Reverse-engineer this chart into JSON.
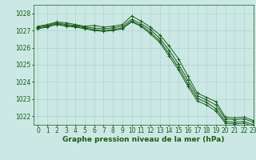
{
  "title": "Graphe pression niveau de la mer (hPa)",
  "bg_color": "#cce8e4",
  "grid_color": "#aad4ce",
  "line_color": "#1a5c1a",
  "xlim": [
    -0.5,
    23
  ],
  "ylim": [
    1021.5,
    1028.5
  ],
  "yticks": [
    1022,
    1023,
    1024,
    1025,
    1026,
    1027,
    1028
  ],
  "xticks": [
    0,
    1,
    2,
    3,
    4,
    5,
    6,
    7,
    8,
    9,
    10,
    11,
    12,
    13,
    14,
    15,
    16,
    17,
    18,
    19,
    20,
    21,
    22,
    23
  ],
  "series": [
    [
      1027.25,
      1027.35,
      1027.5,
      1027.45,
      1027.35,
      1027.25,
      1027.3,
      1027.2,
      1027.25,
      1027.35,
      1027.85,
      1027.55,
      1027.2,
      1026.75,
      1026.1,
      1025.35,
      1024.35,
      1023.35,
      1023.1,
      1022.85,
      1021.95,
      1021.9,
      1021.95,
      1021.75
    ],
    [
      1027.2,
      1027.3,
      1027.45,
      1027.35,
      1027.3,
      1027.2,
      1027.15,
      1027.1,
      1027.15,
      1027.25,
      1027.65,
      1027.4,
      1027.05,
      1026.55,
      1025.85,
      1025.05,
      1024.1,
      1023.2,
      1022.95,
      1022.65,
      1021.85,
      1021.8,
      1021.85,
      1021.65
    ],
    [
      1027.15,
      1027.25,
      1027.4,
      1027.3,
      1027.25,
      1027.15,
      1027.05,
      1027.0,
      1027.05,
      1027.15,
      1027.55,
      1027.3,
      1026.9,
      1026.4,
      1025.65,
      1024.85,
      1023.9,
      1023.05,
      1022.8,
      1022.45,
      1021.7,
      1021.65,
      1021.7,
      1021.5
    ],
    [
      1027.1,
      1027.2,
      1027.35,
      1027.25,
      1027.2,
      1027.1,
      1027.0,
      1026.95,
      1027.0,
      1027.1,
      1027.5,
      1027.25,
      1026.8,
      1026.3,
      1025.5,
      1024.7,
      1023.75,
      1022.9,
      1022.65,
      1022.3,
      1021.6,
      1021.55,
      1021.6,
      1021.4
    ]
  ],
  "tick_fontsize": 5.5,
  "title_fontsize": 6.5
}
